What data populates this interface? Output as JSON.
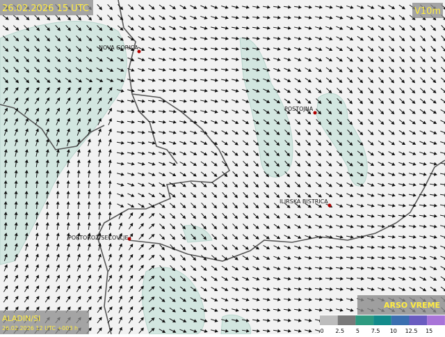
{
  "header": {
    "title": "26.02.2026 15 UTC",
    "variable": "V10m"
  },
  "places": [
    {
      "label": "NOVA GORICA"
    },
    {
      "label": "POSTOJNA"
    },
    {
      "label": "ILIRSKA BISTRICA"
    },
    {
      "label": "PORTOROŽ/SEČOVLJE"
    }
  ],
  "footer": {
    "model": "ALADIN/SI",
    "run": "26.02.2026 12 UTC +003 h",
    "brand": "ARSO VREME"
  },
  "legend": {
    "ticks": [
      0,
      2.5,
      5,
      7.5,
      10,
      12.5,
      15
    ],
    "colors": [
      "#bdbdbd",
      "#7a7a7a",
      "#2e9a80",
      "#138a8a",
      "#3b6fb0",
      "#6a5cc0",
      "#a874d8"
    ]
  }
}
